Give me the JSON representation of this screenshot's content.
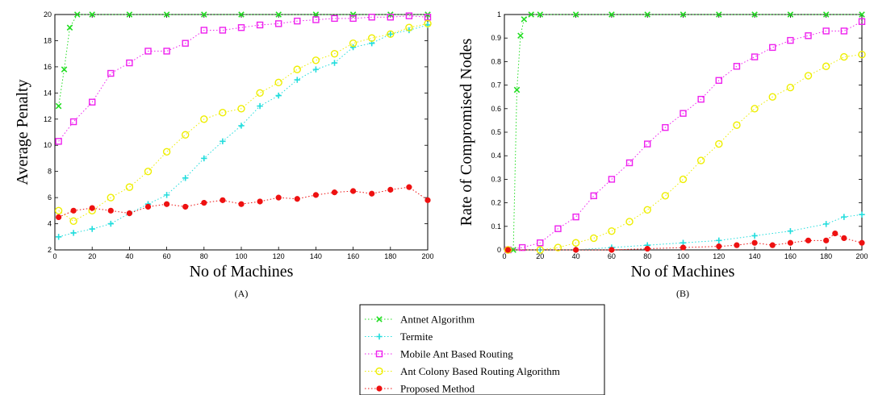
{
  "legend": [
    {
      "name": "Antnet Algorithm",
      "color": "#22dd22",
      "marker": "x"
    },
    {
      "name": "Termite",
      "color": "#22dddd",
      "marker": "plus"
    },
    {
      "name": "Mobile Ant Based Routing",
      "color": "#ee22ee",
      "marker": "square"
    },
    {
      "name": "Ant Colony Based Routing Algorithm",
      "color": "#eeee00",
      "marker": "circle"
    },
    {
      "name": "Proposed Method",
      "color": "#ee1111",
      "marker": "star"
    }
  ],
  "chart_data": [
    {
      "type": "scatter",
      "panel_label": "(A)",
      "xlabel": "No of Machines",
      "ylabel": "Average Penalty",
      "xlim": [
        0,
        200
      ],
      "ylim": [
        2,
        20
      ],
      "xticks": [
        0,
        20,
        40,
        60,
        80,
        100,
        120,
        140,
        160,
        180,
        200
      ],
      "yticks": [
        2,
        4,
        6,
        8,
        10,
        12,
        14,
        16,
        18,
        20
      ],
      "grid": false,
      "series": [
        {
          "name": "Antnet Algorithm",
          "x": [
            2,
            5,
            8,
            12,
            20,
            40,
            60,
            80,
            100,
            120,
            140,
            160,
            180,
            200
          ],
          "y": [
            13.0,
            15.8,
            19.0,
            20,
            20,
            20,
            20,
            20,
            20,
            20,
            20,
            20,
            20,
            20
          ]
        },
        {
          "name": "Termite",
          "x": [
            2,
            10,
            20,
            30,
            40,
            50,
            60,
            70,
            80,
            90,
            100,
            110,
            120,
            130,
            140,
            150,
            160,
            170,
            180,
            190,
            200
          ],
          "y": [
            3.0,
            3.3,
            3.6,
            4.0,
            4.8,
            5.5,
            6.2,
            7.5,
            9.0,
            10.3,
            11.5,
            13.0,
            13.8,
            15.0,
            15.8,
            16.3,
            17.5,
            17.8,
            18.5,
            18.8,
            19.2
          ]
        },
        {
          "name": "Mobile Ant Based Routing",
          "x": [
            2,
            10,
            20,
            30,
            40,
            50,
            60,
            70,
            80,
            90,
            100,
            110,
            120,
            130,
            140,
            150,
            160,
            170,
            180,
            190,
            200
          ],
          "y": [
            10.3,
            11.8,
            13.3,
            15.5,
            16.3,
            17.2,
            17.2,
            17.8,
            18.8,
            18.8,
            19.0,
            19.2,
            19.3,
            19.5,
            19.6,
            19.7,
            19.7,
            19.8,
            19.8,
            19.9,
            19.8
          ]
        },
        {
          "name": "Ant Colony Based Routing Algorithm",
          "x": [
            2,
            10,
            20,
            30,
            40,
            50,
            60,
            70,
            80,
            90,
            100,
            110,
            120,
            130,
            140,
            150,
            160,
            170,
            180,
            190,
            200
          ],
          "y": [
            5.0,
            4.2,
            5.0,
            6.0,
            6.8,
            8.0,
            9.5,
            10.8,
            12.0,
            12.5,
            12.8,
            14.0,
            14.8,
            15.8,
            16.5,
            17.0,
            17.8,
            18.2,
            18.5,
            19.0,
            19.3
          ]
        },
        {
          "name": "Proposed Method",
          "x": [
            2,
            10,
            20,
            30,
            40,
            50,
            60,
            70,
            80,
            90,
            100,
            110,
            120,
            130,
            140,
            150,
            160,
            170,
            180,
            190,
            200
          ],
          "y": [
            4.5,
            5.0,
            5.2,
            5.0,
            4.8,
            5.3,
            5.5,
            5.3,
            5.6,
            5.8,
            5.5,
            5.7,
            6.0,
            5.9,
            6.2,
            6.4,
            6.5,
            6.3,
            6.6,
            6.8,
            5.8
          ]
        }
      ]
    },
    {
      "type": "scatter",
      "panel_label": "(B)",
      "xlabel": "No of Machines",
      "ylabel": "Rate of Compromised Nodes",
      "xlim": [
        0,
        200
      ],
      "ylim": [
        0,
        1
      ],
      "xticks": [
        0,
        20,
        40,
        60,
        80,
        100,
        120,
        140,
        160,
        180,
        200
      ],
      "yticks": [
        0,
        0.1,
        0.2,
        0.3,
        0.4,
        0.5,
        0.6,
        0.7,
        0.8,
        0.9,
        1
      ],
      "grid": false,
      "series": [
        {
          "name": "Antnet Algorithm",
          "x": [
            2,
            5,
            7,
            9,
            11,
            15,
            20,
            40,
            60,
            80,
            100,
            120,
            140,
            160,
            180,
            200
          ],
          "y": [
            0,
            0,
            0.68,
            0.91,
            0.98,
            1,
            1,
            1,
            1,
            1,
            1,
            1,
            1,
            1,
            1,
            1
          ]
        },
        {
          "name": "Termite",
          "x": [
            2,
            20,
            40,
            60,
            80,
            100,
            120,
            140,
            160,
            180,
            190,
            200
          ],
          "y": [
            0,
            0,
            0,
            0.01,
            0.02,
            0.03,
            0.04,
            0.06,
            0.08,
            0.11,
            0.14,
            0.15
          ]
        },
        {
          "name": "Mobile Ant Based Routing",
          "x": [
            2,
            10,
            20,
            30,
            40,
            50,
            60,
            70,
            80,
            90,
            100,
            110,
            120,
            130,
            140,
            150,
            160,
            170,
            180,
            190,
            200
          ],
          "y": [
            0,
            0.01,
            0.03,
            0.09,
            0.14,
            0.23,
            0.3,
            0.37,
            0.45,
            0.52,
            0.58,
            0.64,
            0.72,
            0.78,
            0.82,
            0.86,
            0.89,
            0.91,
            0.93,
            0.93,
            0.97
          ]
        },
        {
          "name": "Ant Colony Based Routing Algorithm",
          "x": [
            2,
            20,
            30,
            40,
            50,
            60,
            70,
            80,
            90,
            100,
            110,
            120,
            130,
            140,
            150,
            160,
            170,
            180,
            190,
            200
          ],
          "y": [
            0,
            0,
            0.01,
            0.03,
            0.05,
            0.08,
            0.12,
            0.17,
            0.23,
            0.3,
            0.38,
            0.45,
            0.53,
            0.6,
            0.65,
            0.69,
            0.74,
            0.78,
            0.82,
            0.83
          ]
        },
        {
          "name": "Proposed Method",
          "x": [
            2,
            40,
            60,
            80,
            100,
            120,
            130,
            140,
            150,
            160,
            170,
            180,
            185,
            190,
            200
          ],
          "y": [
            0,
            0,
            0,
            0.005,
            0.01,
            0.015,
            0.02,
            0.03,
            0.02,
            0.03,
            0.04,
            0.04,
            0.07,
            0.05,
            0.03
          ]
        }
      ]
    }
  ]
}
